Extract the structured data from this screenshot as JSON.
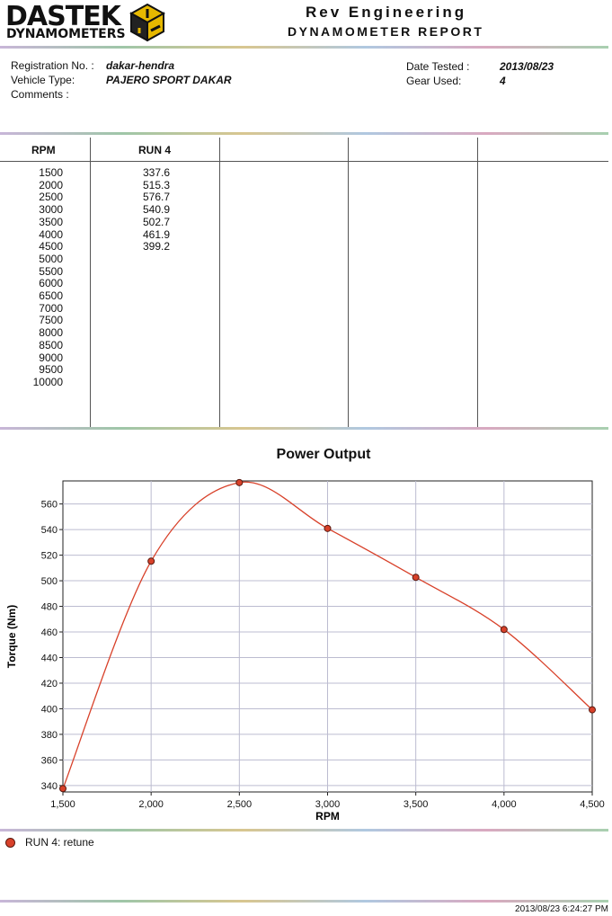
{
  "header": {
    "logo_main": "DASTEK",
    "logo_sub": "DYNAMOMETERS",
    "company": "Rev Engineering",
    "report_title": "DYNAMOMETER REPORT"
  },
  "info": {
    "registration_label": "Registration No. :",
    "registration_value": "dakar-hendra",
    "vehicle_label": "Vehicle Type:",
    "vehicle_value": "PAJERO SPORT DAKAR",
    "comments_label": "Comments :",
    "date_label": "Date Tested :",
    "date_value": "2013/08/23",
    "gear_label": "Gear Used:",
    "gear_value": "4"
  },
  "table": {
    "col_rpm": "RPM",
    "col_run": "RUN 4",
    "rpm": [
      "1500",
      "2000",
      "2500",
      "3000",
      "3500",
      "4000",
      "4500",
      "5000",
      "5500",
      "6000",
      "6500",
      "7000",
      "7500",
      "8000",
      "8500",
      "9000",
      "9500",
      "10000"
    ],
    "run4": [
      "337.6",
      "515.3",
      "576.7",
      "540.9",
      "502.7",
      "461.9",
      "399.2"
    ]
  },
  "chart_data": {
    "type": "line",
    "title": "Power Output",
    "xlabel": "RPM",
    "ylabel": "Torque (Nm)",
    "x": [
      1500,
      2000,
      2500,
      3000,
      3500,
      4000,
      4500
    ],
    "series": [
      {
        "name": "RUN 4: retune",
        "values": [
          337.6,
          515.3,
          576.7,
          540.9,
          502.7,
          461.9,
          399.2
        ],
        "color": "#d8412a"
      }
    ],
    "xlim": [
      1500,
      4500
    ],
    "ylim": [
      335,
      578
    ],
    "x_ticks": [
      "1,500",
      "2,000",
      "2,500",
      "3,000",
      "3,500",
      "4,000",
      "4,500"
    ],
    "y_ticks": [
      "340",
      "360",
      "380",
      "400",
      "420",
      "440",
      "460",
      "480",
      "500",
      "520",
      "540",
      "560"
    ],
    "grid": true,
    "legend_position": "bottom-left"
  },
  "legend": {
    "label": "RUN 4: retune",
    "marker_color": "#d8412a"
  },
  "footer": {
    "timestamp": "2013/08/23 6:24:27 PM"
  }
}
